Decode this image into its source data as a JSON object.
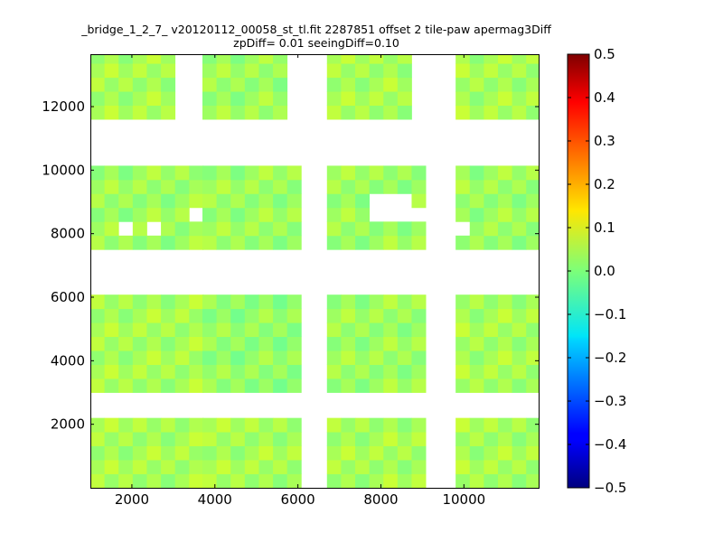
{
  "chart_data": {
    "type": "heatmap",
    "title": "_bridge_1_2_7_ v20120112_00058_st_tl.fit 2287851 offset 2 tile-paw apermag3Diff",
    "subtitle": "zpDiff= 0.01 seeingDiff=0.10",
    "xlabel": "",
    "ylabel": "",
    "xlim": [
      1000,
      11800
    ],
    "ylim": [
      0,
      13650
    ],
    "x_ticks": [
      2000,
      4000,
      6000,
      8000,
      10000
    ],
    "y_ticks": [
      2000,
      4000,
      6000,
      8000,
      10000,
      12000
    ],
    "x_tick_labels": [
      "2000",
      "4000",
      "6000",
      "8000",
      "10000"
    ],
    "y_tick_labels": [
      "2000",
      "4000",
      "6000",
      "8000",
      "10000",
      "12000"
    ],
    "grid": false,
    "colormap": "jet",
    "color_range": [
      -0.5,
      0.5
    ],
    "colorbar_ticks": [
      0.5,
      0.4,
      0.3,
      0.2,
      0.1,
      0.0,
      -0.1,
      -0.2,
      -0.3,
      -0.4,
      -0.5
    ],
    "colorbar_tick_labels": [
      "0.5",
      "0.4",
      "0.3",
      "0.2",
      "0.1",
      "0.0",
      "−0.1",
      "−0.2",
      "−0.3",
      "−0.4",
      "−0.5"
    ],
    "cell_size": [
      340,
      440
    ],
    "grid_origin": [
      1000,
      0
    ],
    "rows": [
      "..........................................................................",
      ".ggg.gag...agggg.ggggg.ggggg..aggaag.....ggggg.ggggg...agagg.aaaagg.......",
      "...",
      ""
    ],
    "cells": []
  }
}
